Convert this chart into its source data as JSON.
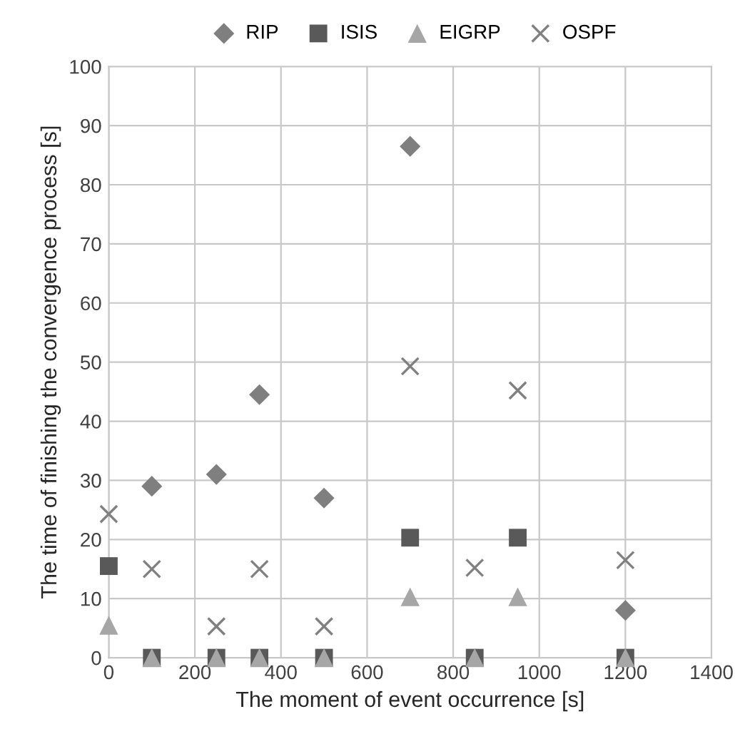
{
  "chart_data": {
    "type": "scatter",
    "xlabel": "The moment of event occurrence [s]",
    "ylabel": "The time of finishing the convergence process [s]",
    "xlim": [
      0,
      1400
    ],
    "xticks": [
      0,
      200,
      400,
      600,
      800,
      1000,
      1200,
      1400
    ],
    "ylim": [
      0,
      100
    ],
    "yticks": [
      0,
      10,
      20,
      30,
      40,
      50,
      60,
      70,
      80,
      90,
      100
    ],
    "grid": true,
    "legend": "top",
    "series": [
      {
        "name": "RIP",
        "color": "#7f7f7f",
        "marker": "diamond",
        "x": [
          100,
          250,
          350,
          500,
          700,
          1200
        ],
        "values": [
          29,
          31,
          44.5,
          27,
          86.5,
          8
        ]
      },
      {
        "name": "ISIS",
        "color": "#595959",
        "marker": "square",
        "x": [
          0,
          100,
          250,
          350,
          500,
          700,
          850,
          950,
          1200
        ],
        "values": [
          15.5,
          0,
          0,
          0,
          0,
          20.3,
          0,
          20.3,
          0
        ]
      },
      {
        "name": "EIGRP",
        "color": "#a6a6a6",
        "marker": "triangle",
        "x": [
          0,
          100,
          250,
          350,
          500,
          700,
          850,
          950,
          1200
        ],
        "values": [
          5.5,
          0,
          0,
          0,
          0,
          10.3,
          0,
          10.3,
          0
        ]
      },
      {
        "name": "OSPF",
        "color": "#808080",
        "marker": "cross",
        "x": [
          0,
          100,
          250,
          350,
          500,
          700,
          850,
          950,
          1200
        ],
        "values": [
          24.3,
          15,
          5.3,
          15,
          5.3,
          49.3,
          15.2,
          45.2,
          16.5
        ]
      }
    ]
  }
}
